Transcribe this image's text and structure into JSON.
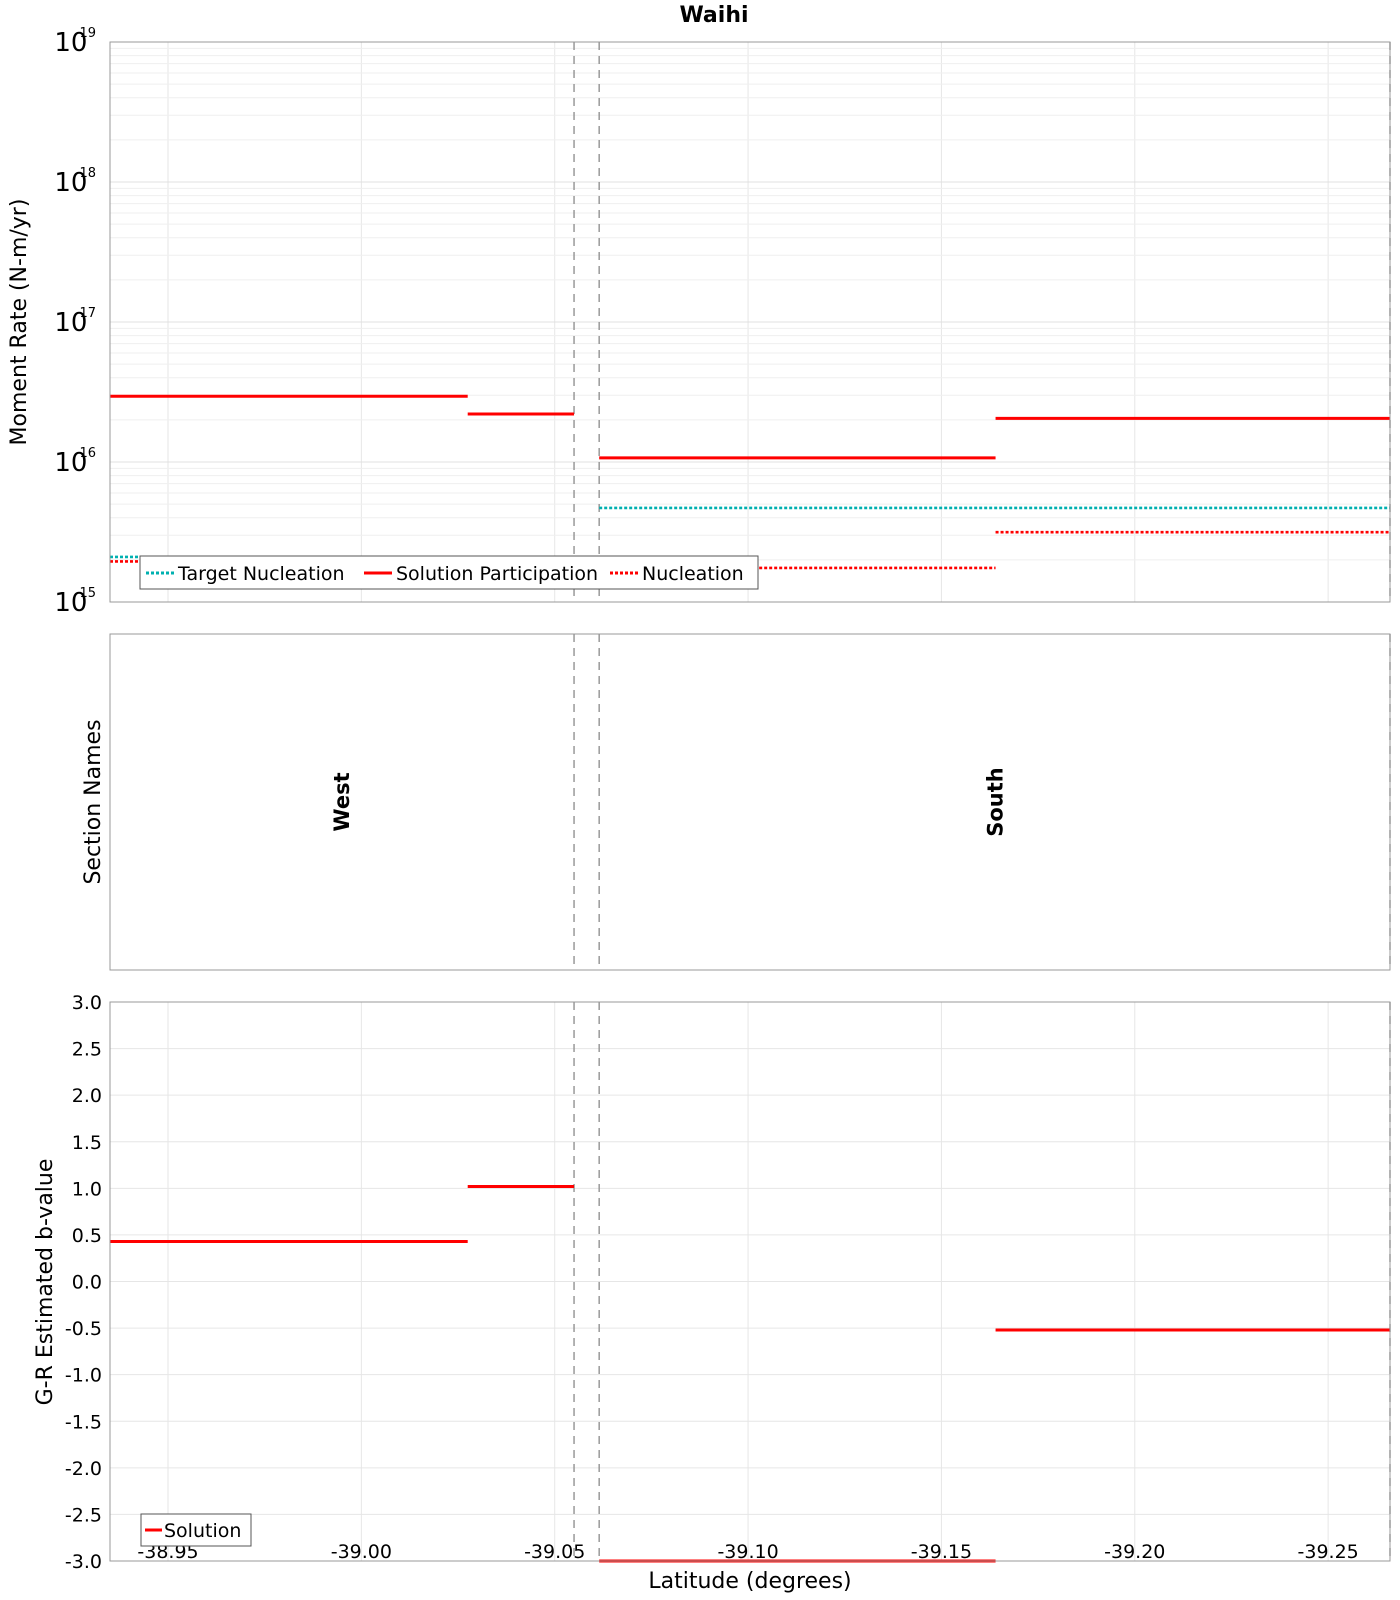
{
  "chart_data": {
    "type": "line",
    "title": "Waihi",
    "x_axis": {
      "label": "Latitude (degrees)",
      "range": [
        -38.935,
        -39.266
      ],
      "ticks": [
        -38.95,
        -39.0,
        -39.05,
        -39.1,
        -39.15,
        -39.2,
        -39.25
      ],
      "tick_labels": [
        "-38.95",
        "-39.00",
        "-39.05",
        "-39.10",
        "-39.15",
        "-39.20",
        "-39.25"
      ],
      "section_boundaries": [
        -39.055,
        -39.0615,
        -39.266
      ]
    },
    "panels": [
      {
        "id": "moment-rate",
        "ylabel": "Moment Rate (N-m/yr)",
        "yscale": "log",
        "ylim": [
          1000000000000000.0,
          1e+19
        ],
        "tick_exponents": [
          15,
          16,
          17,
          18,
          19
        ],
        "grid": true,
        "legend_position": "bottom-left",
        "series": [
          {
            "name": "Target Nucleation",
            "color": "#00b0b0",
            "style": "dotted",
            "segments": [
              {
                "x": [
                  -38.935,
                  -39.055
                ],
                "y": 2100000000000000.0
              },
              {
                "x": [
                  -39.0615,
                  -39.266
                ],
                "y": 4700000000000000.0
              }
            ]
          },
          {
            "name": "Solution Participation",
            "color": "#ff0000",
            "style": "solid",
            "segments": [
              {
                "x": [
                  -38.935,
                  -39.0275
                ],
                "y": 2.95e+16
              },
              {
                "x": [
                  -39.0275,
                  -39.055
                ],
                "y": 2.2e+16
              },
              {
                "x": [
                  -39.0615,
                  -39.164
                ],
                "y": 1.07e+16
              },
              {
                "x": [
                  -39.164,
                  -39.266
                ],
                "y": 2.05e+16
              }
            ]
          },
          {
            "name": "Nucleation",
            "color": "#ff0000",
            "style": "dotted",
            "segments": [
              {
                "x": [
                  -38.935,
                  -39.0275
                ],
                "y": 1950000000000000.0
              },
              {
                "x": [
                  -39.0275,
                  -39.055
                ],
                "y": 1600000000000000.0
              },
              {
                "x": [
                  -39.0615,
                  -39.164
                ],
                "y": 1750000000000000.0
              },
              {
                "x": [
                  -39.164,
                  -39.266
                ],
                "y": 3150000000000000.0
              }
            ]
          }
        ]
      },
      {
        "id": "section-names",
        "ylabel": "Section Names",
        "sections": [
          {
            "name": "West",
            "x": -38.995
          },
          {
            "name": "South",
            "x": -39.164
          }
        ]
      },
      {
        "id": "b-value",
        "ylabel": "G-R Estimated b-value",
        "yscale": "linear",
        "ylim": [
          -3.0,
          3.0
        ],
        "ticks": [
          3.0,
          2.5,
          2.0,
          1.5,
          1.0,
          0.5,
          0.0,
          -0.5,
          -1.0,
          -1.5,
          -2.0,
          -2.5,
          -3.0
        ],
        "tick_labels": [
          "3.0",
          "2.5",
          "2.0",
          "1.5",
          "1.0",
          "0.5",
          "0.0",
          "-0.5",
          "-1.0",
          "-1.5",
          "-2.0",
          "-2.5",
          "-3.0"
        ],
        "grid": true,
        "legend_position": "bottom-left",
        "series": [
          {
            "name": "Solution",
            "color": "#ff0000",
            "style": "solid",
            "segments": [
              {
                "x": [
                  -38.935,
                  -39.0275
                ],
                "y": 0.43
              },
              {
                "x": [
                  -39.0275,
                  -39.055
                ],
                "y": 1.02
              },
              {
                "x": [
                  -39.0615,
                  -39.164
                ],
                "y": -3.0
              },
              {
                "x": [
                  -39.164,
                  -39.266
                ],
                "y": -0.52
              }
            ]
          }
        ]
      }
    ]
  }
}
